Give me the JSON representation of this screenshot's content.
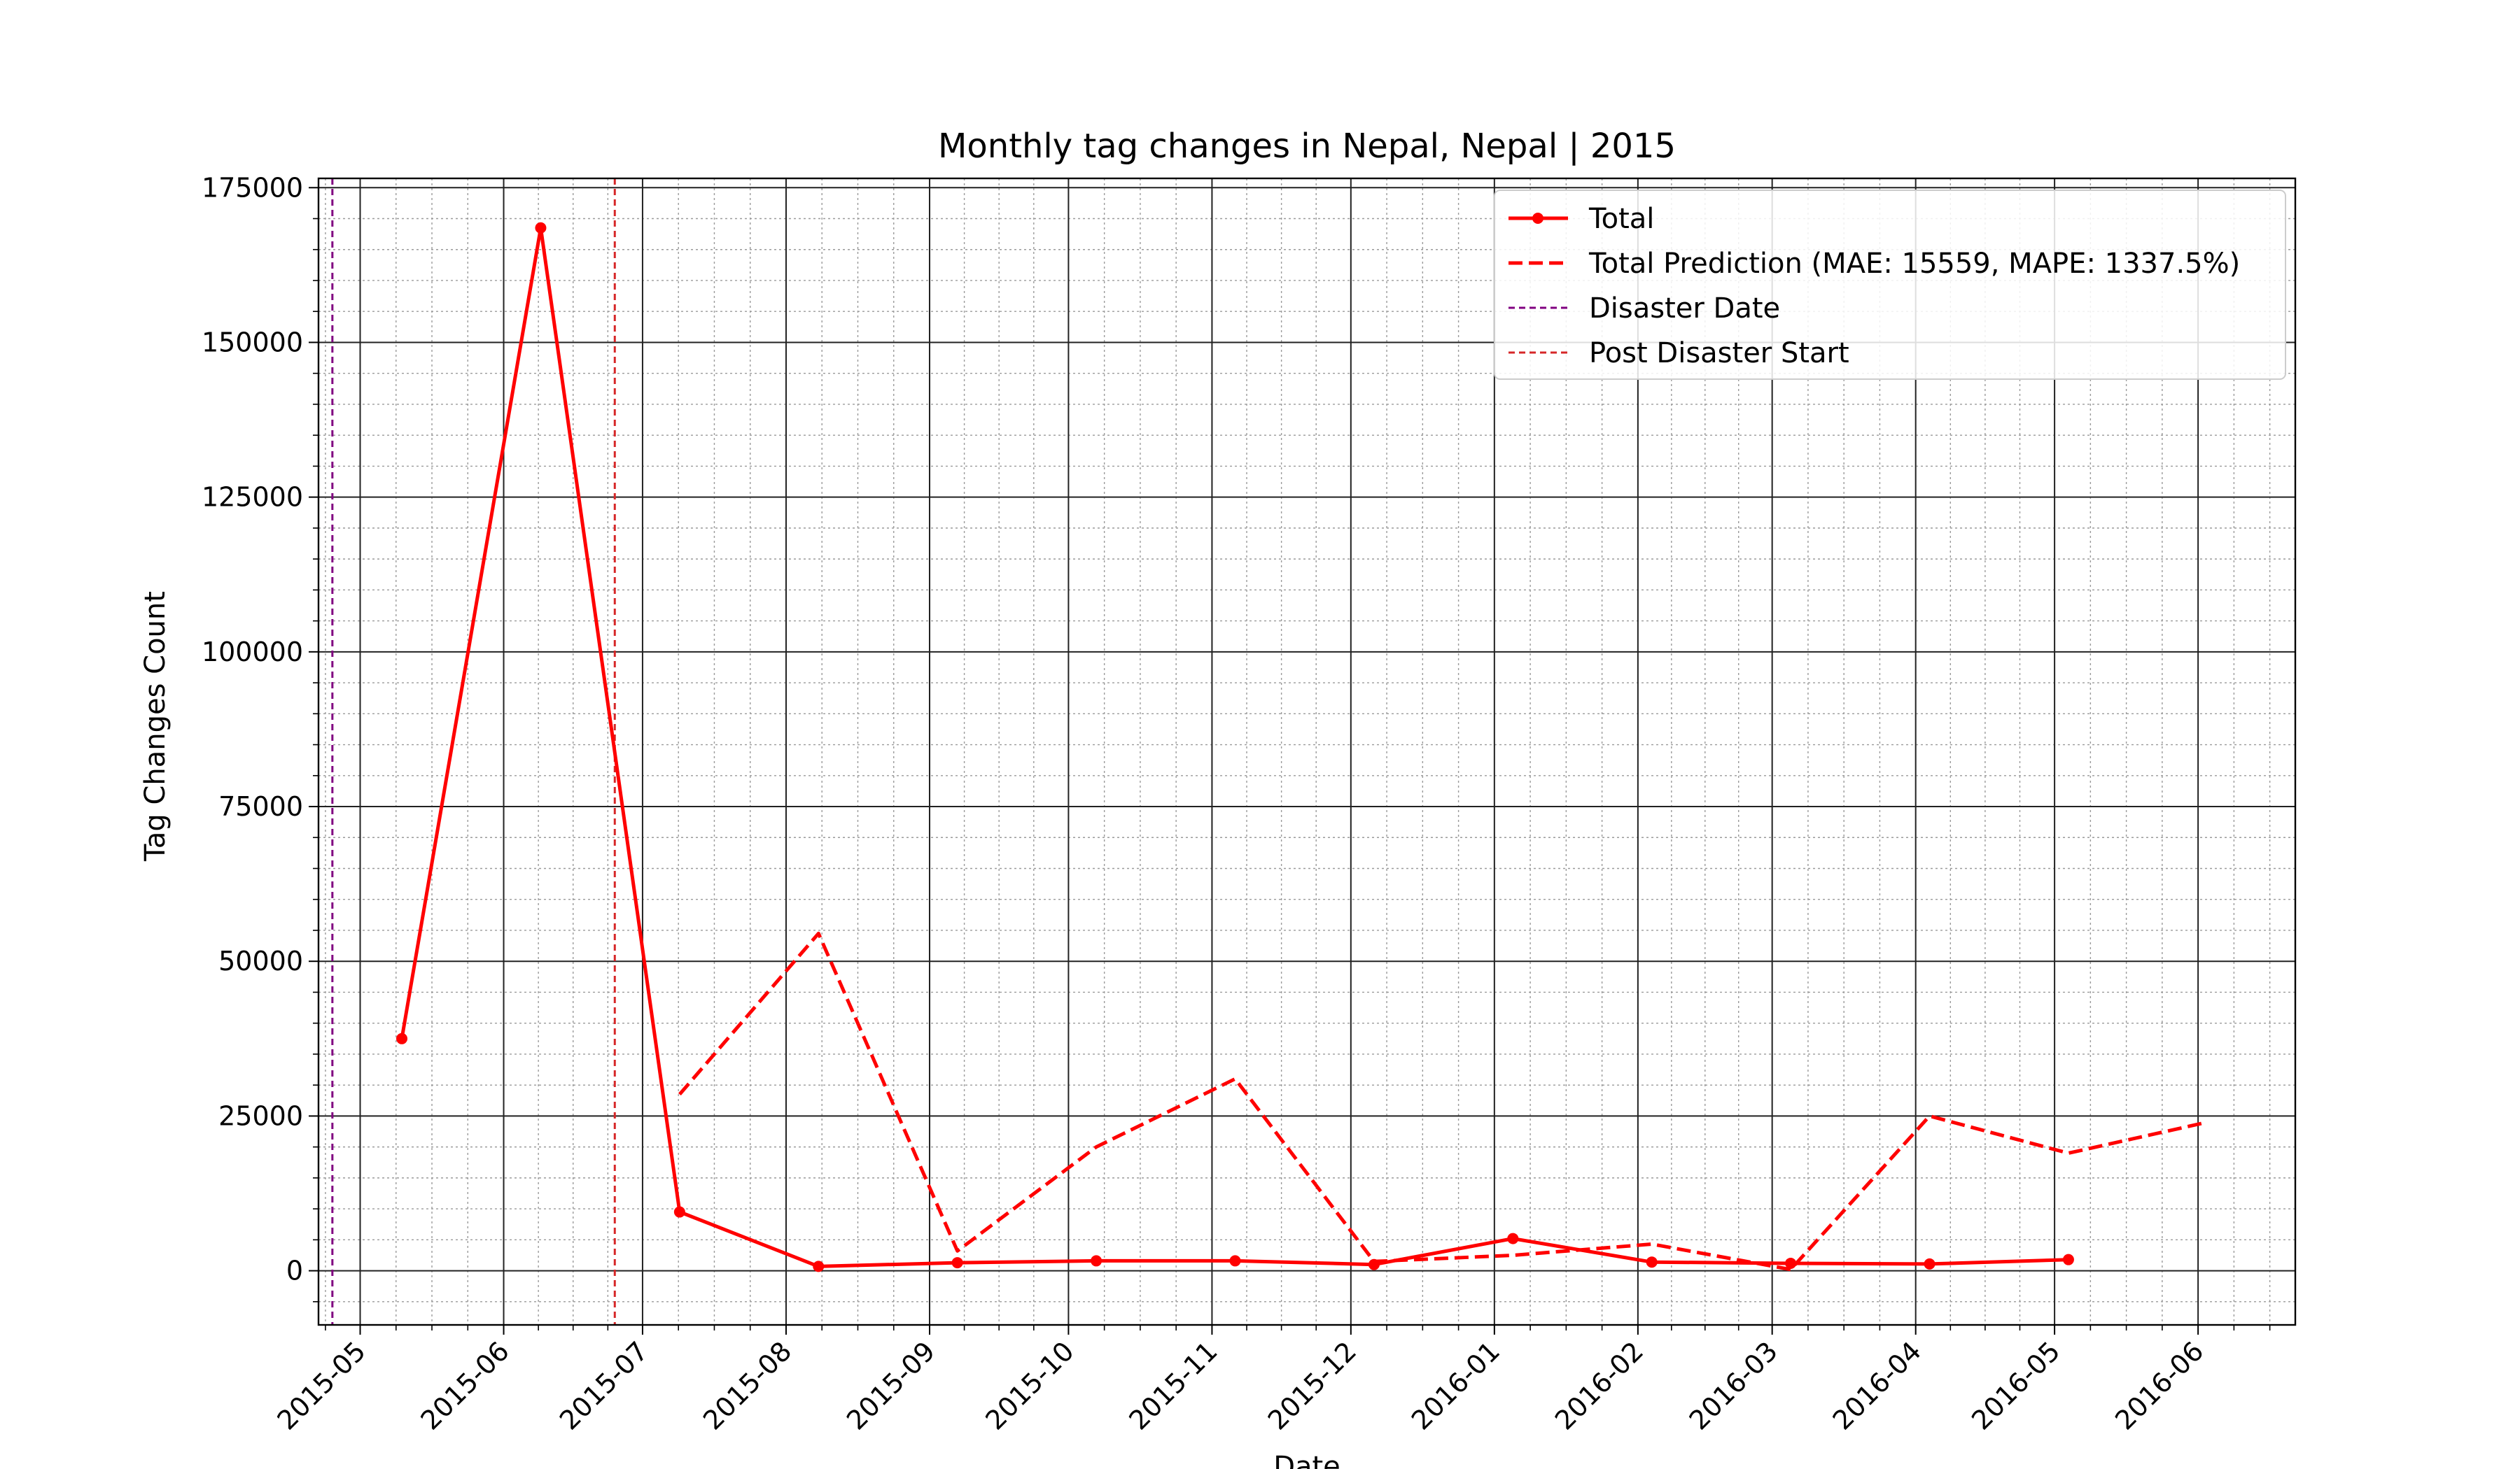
{
  "chart_data": {
    "type": "line",
    "title": "Monthly tag changes in Nepal, Nepal | 2015",
    "xlabel": "Date",
    "ylabel": "Tag Changes Count",
    "ylim": [
      -8750,
      176500
    ],
    "xlim": [
      "2015-04-22",
      "2016-06-22"
    ],
    "yticks": [
      0,
      25000,
      50000,
      75000,
      100000,
      125000,
      150000,
      175000
    ],
    "xticks": [
      "2015-05",
      "2015-06",
      "2015-07",
      "2015-08",
      "2015-09",
      "2015-10",
      "2015-11",
      "2015-12",
      "2016-01",
      "2016-02",
      "2016-03",
      "2016-04",
      "2016-05",
      "2016-06"
    ],
    "grid": true,
    "legend_position": "top-right",
    "series": [
      {
        "name": "Total",
        "style": "solid",
        "markers": true,
        "color": "#ff0000",
        "points": [
          {
            "x": "2015-05-10",
            "y": 37500
          },
          {
            "x": "2015-06-09",
            "y": 168500
          },
          {
            "x": "2015-07-09",
            "y": 9500
          },
          {
            "x": "2015-08-08",
            "y": 700
          },
          {
            "x": "2015-09-07",
            "y": 1300
          },
          {
            "x": "2015-10-07",
            "y": 1600
          },
          {
            "x": "2015-11-06",
            "y": 1600
          },
          {
            "x": "2015-12-06",
            "y": 1000
          },
          {
            "x": "2016-01-05",
            "y": 5200
          },
          {
            "x": "2016-02-04",
            "y": 1400
          },
          {
            "x": "2016-03-05",
            "y": 1200
          },
          {
            "x": "2016-04-04",
            "y": 1100
          },
          {
            "x": "2016-05-04",
            "y": 1800
          }
        ]
      },
      {
        "name": "Total Prediction (MAE: 15559, MAPE: 1337.5%)",
        "style": "dashed",
        "markers": false,
        "color": "#ff0000",
        "points": [
          {
            "x": "2015-07-09",
            "y": 28500
          },
          {
            "x": "2015-08-08",
            "y": 54500
          },
          {
            "x": "2015-09-07",
            "y": 3200
          },
          {
            "x": "2015-10-07",
            "y": 20000
          },
          {
            "x": "2015-11-06",
            "y": 31000
          },
          {
            "x": "2015-12-06",
            "y": 1500
          },
          {
            "x": "2016-01-05",
            "y": 2500
          },
          {
            "x": "2016-02-04",
            "y": 4300
          },
          {
            "x": "2016-03-05",
            "y": 200
          },
          {
            "x": "2016-04-04",
            "y": 25000
          },
          {
            "x": "2016-05-04",
            "y": 19000
          },
          {
            "x": "2016-06-03",
            "y": 24000
          }
        ]
      }
    ],
    "vlines": [
      {
        "name": "Disaster Date",
        "x": "2015-04-25",
        "color": "#800080",
        "style": "dashed"
      },
      {
        "name": "Post Disaster Start",
        "x": "2015-06-25",
        "color": "#d62728",
        "style": "dashed"
      }
    ]
  }
}
